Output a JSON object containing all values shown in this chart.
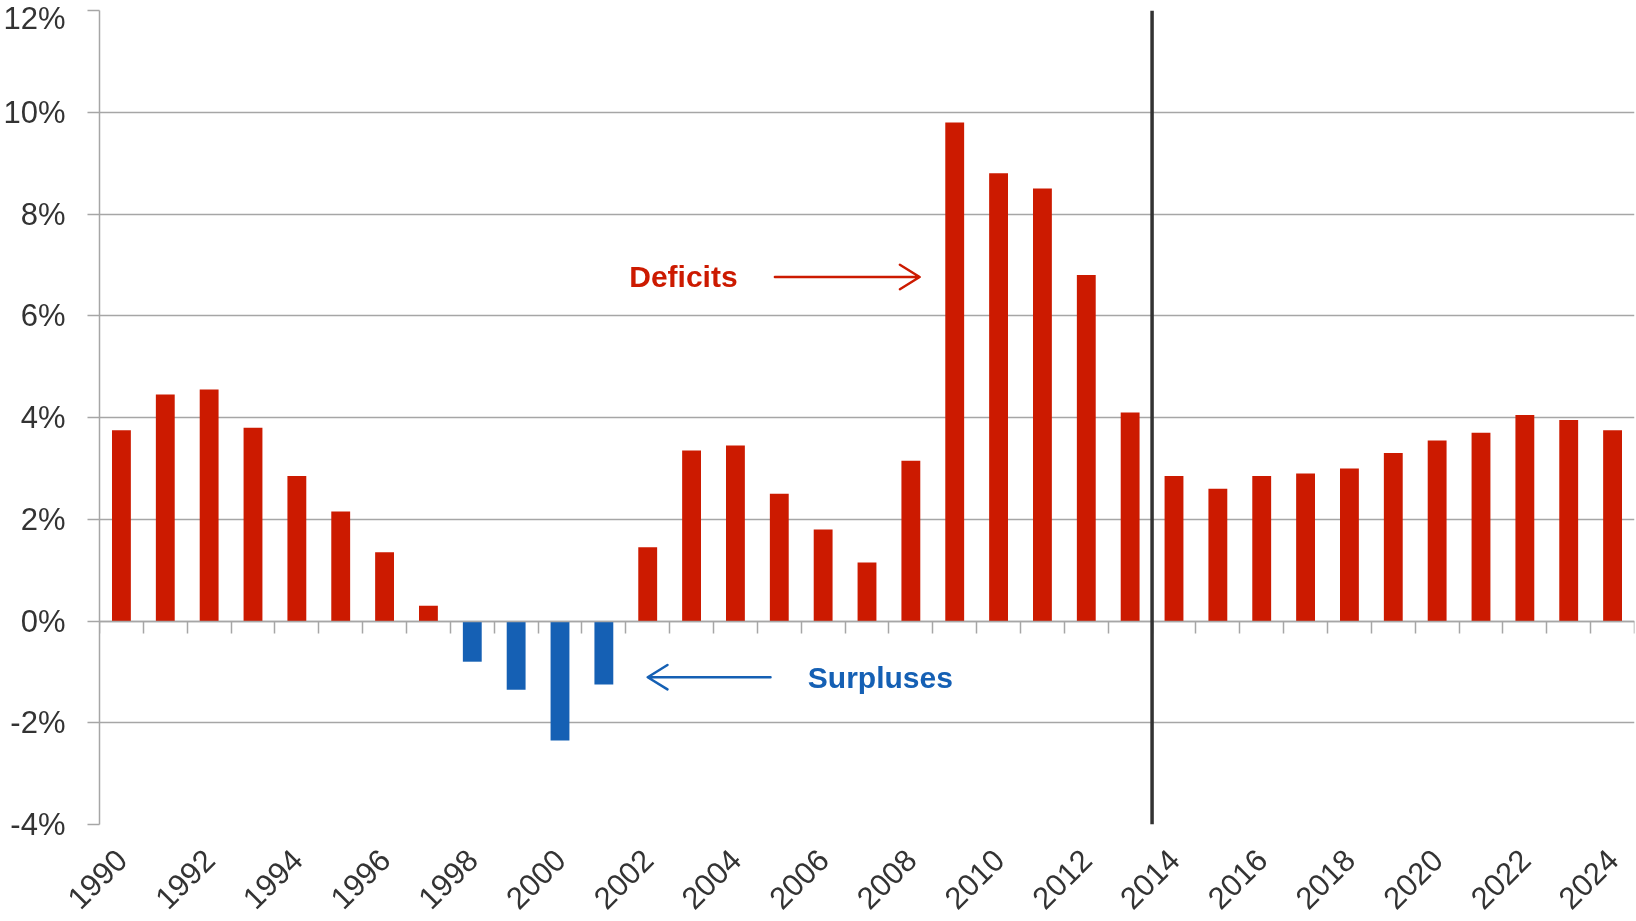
{
  "chart_data": {
    "type": "bar",
    "x": [
      1990,
      1991,
      1992,
      1993,
      1994,
      1995,
      1996,
      1997,
      1998,
      1999,
      2000,
      2001,
      2002,
      2003,
      2004,
      2005,
      2006,
      2007,
      2008,
      2009,
      2010,
      2011,
      2012,
      2013,
      2014,
      2015,
      2016,
      2017,
      2018,
      2019,
      2020,
      2021,
      2022,
      2023,
      2024
    ],
    "values": [
      3.75,
      4.45,
      4.55,
      3.8,
      2.85,
      2.15,
      1.35,
      0.3,
      -0.8,
      -1.35,
      -2.35,
      -1.25,
      1.45,
      3.35,
      3.45,
      2.5,
      1.8,
      1.15,
      3.15,
      9.8,
      8.8,
      8.5,
      6.8,
      4.1,
      2.85,
      2.6,
      2.85,
      2.9,
      3.0,
      3.3,
      3.55,
      3.7,
      4.05,
      3.95,
      3.75
    ],
    "colors": [
      "#cc1a00",
      "#cc1a00",
      "#cc1a00",
      "#cc1a00",
      "#cc1a00",
      "#cc1a00",
      "#cc1a00",
      "#cc1a00",
      "#1560b4",
      "#1560b4",
      "#1560b4",
      "#1560b4",
      "#cc1a00",
      "#cc1a00",
      "#cc1a00",
      "#cc1a00",
      "#cc1a00",
      "#cc1a00",
      "#cc1a00",
      "#cc1a00",
      "#cc1a00",
      "#cc1a00",
      "#cc1a00",
      "#cc1a00",
      "#cc1a00",
      "#cc1a00",
      "#cc1a00",
      "#cc1a00",
      "#cc1a00",
      "#cc1a00",
      "#cc1a00",
      "#cc1a00",
      "#cc1a00",
      "#cc1a00",
      "#cc1a00"
    ],
    "xlim": [
      1989.5,
      2024.5
    ],
    "xticks": [
      {
        "value": 1989.5,
        "label": null
      },
      1990,
      {
        "value": 1990.5,
        "label": null
      },
      {
        "value": 1991.5,
        "label": null
      },
      1992,
      {
        "value": 1992.5,
        "label": null
      },
      {
        "value": 1993.5,
        "label": null
      },
      1994,
      {
        "value": 1994.5,
        "label": null
      },
      {
        "value": 1995.5,
        "label": null
      },
      1996,
      {
        "value": 1996.5,
        "label": null
      },
      {
        "value": 1997.5,
        "label": null
      },
      1998,
      {
        "value": 1998.5,
        "label": null
      },
      {
        "value": 1999.5,
        "label": null
      },
      2000,
      {
        "value": 2000.5,
        "label": null
      },
      {
        "value": 2001.5,
        "label": null
      },
      2002,
      {
        "value": 2002.5,
        "label": null
      },
      {
        "value": 2003.5,
        "label": null
      },
      2004,
      {
        "value": 2004.5,
        "label": null
      },
      {
        "value": 2005.5,
        "label": null
      },
      2006,
      {
        "value": 2006.5,
        "label": null
      },
      {
        "value": 2007.5,
        "label": null
      },
      2008,
      {
        "value": 2008.5,
        "label": null
      },
      {
        "value": 2009.5,
        "label": null
      },
      2010,
      {
        "value": 2010.5,
        "label": null
      },
      {
        "value": 2011.5,
        "label": null
      },
      2012,
      {
        "value": 2012.5,
        "label": null
      },
      {
        "value": 2013.5,
        "label": null
      },
      2014,
      {
        "value": 2014.5,
        "label": null
      },
      {
        "value": 2015.5,
        "label": null
      },
      2016,
      {
        "value": 2016.5,
        "label": null
      },
      {
        "value": 2017.5,
        "label": null
      },
      2018,
      {
        "value": 2018.5,
        "label": null
      },
      {
        "value": 2019.5,
        "label": null
      },
      2020,
      {
        "value": 2020.5,
        "label": null
      },
      {
        "value": 2021.5,
        "label": null
      },
      2022,
      {
        "value": 2022.5,
        "label": null
      },
      {
        "value": 2023.5,
        "label": null
      },
      2024,
      {
        "value": 2024.5,
        "label": null
      }
    ],
    "ylim": [
      -4,
      12
    ],
    "yticks": [
      {
        "value": -4,
        "label": "-4%"
      },
      {
        "value": -2,
        "label": "-2%"
      },
      {
        "value": 0,
        "label": "0%"
      },
      {
        "value": 2,
        "label": "2%"
      },
      {
        "value": 4,
        "label": "4%"
      },
      {
        "value": 6,
        "label": "6%"
      },
      {
        "value": 8,
        "label": "8%"
      },
      {
        "value": 10,
        "label": "10%"
      },
      {
        "value": 12,
        "label": "12%"
      }
    ],
    "grid": "y",
    "ref_lines": [
      {
        "axis": "x",
        "value": 2013.5,
        "color": "#333333"
      }
    ],
    "annotations": [
      "Deficits",
      "Surpluses"
    ]
  }
}
